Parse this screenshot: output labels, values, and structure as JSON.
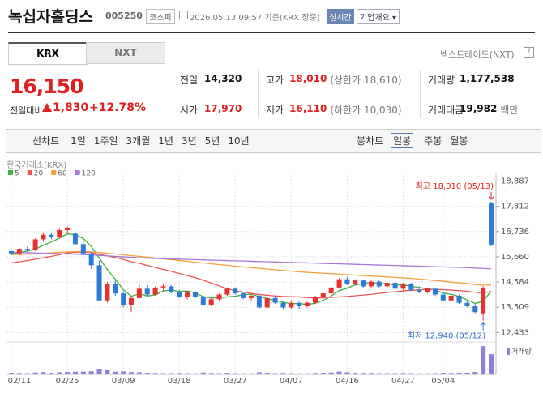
{
  "header": {
    "title": "녹십자홀딩스",
    "code": "005250",
    "market": "코스피",
    "timestamp": "2026.05.13 09:57 기준(KRX 장중)",
    "realtime_button": "실시간",
    "company_button": "기업개요 ▾"
  },
  "tabs": [
    "KRX",
    "NXT"
  ],
  "nxt_link": "넥스트레이드(NXT)",
  "help_icon": "?",
  "quote": {
    "price": "16,150",
    "change_label": "전일대비",
    "change": "1,830",
    "change_rate": "+12.78%"
  },
  "stats": [
    {
      "label": "전일",
      "value": "14,320",
      "value_color": "#111"
    },
    {
      "label": "고가",
      "value": "18,010",
      "note": "(상한가 18,610)",
      "value_color": "#e02020"
    },
    {
      "label": "거래량",
      "value": "1,177,538",
      "value_color": "#111"
    },
    {
      "label": "시가",
      "value": "17,970",
      "value_color": "#e02020"
    },
    {
      "label": "저가",
      "value": "16,110",
      "note": "(하한가 10,030)",
      "value_color": "#e02020"
    },
    {
      "label": "거래대금",
      "value": "19,982",
      "note": "백만",
      "value_color": "#111"
    }
  ],
  "toolbar": {
    "line_chart": "선차트",
    "line_periods": [
      "1일",
      "1주일",
      "3개월",
      "1년",
      "3년",
      "5년",
      "10년"
    ],
    "candle_chart": "봉차트",
    "candle_periods": [
      "일봉",
      "주봉",
      "월봉"
    ],
    "selected": "일봉"
  },
  "chart_data": {
    "type": "candlestick",
    "source": "한국거래소(KRX)",
    "categories": [
      "02/11",
      null,
      null,
      null,
      null,
      null,
      null,
      "02/25",
      null,
      null,
      null,
      null,
      null,
      null,
      "03/09",
      null,
      null,
      null,
      null,
      null,
      null,
      "03/18",
      null,
      null,
      null,
      null,
      null,
      null,
      "03/27",
      null,
      null,
      null,
      null,
      null,
      null,
      "04/07",
      null,
      null,
      null,
      null,
      null,
      null,
      "04/16",
      null,
      null,
      null,
      null,
      null,
      null,
      "04/27",
      null,
      null,
      null,
      null,
      "05/04",
      null,
      null,
      null,
      null,
      null,
      null
    ],
    "open": [
      15900,
      15800,
      16000,
      15950,
      16400,
      16600,
      16500,
      16800,
      16650,
      16200,
      15800,
      15300,
      13800,
      14500,
      14100,
      13600,
      13900,
      14300,
      14050,
      14350,
      14400,
      14150,
      13950,
      14150,
      13950,
      13600,
      13850,
      14050,
      14300,
      14100,
      13900,
      14000,
      13500,
      13900,
      13700,
      13500,
      13700,
      13550,
      13700,
      13950,
      14100,
      14350,
      14700,
      14500,
      14650,
      14400,
      14600,
      14400,
      14550,
      14300,
      14500,
      14250,
      14150,
      14300,
      14050,
      13800,
      14000,
      13700,
      13550,
      13250,
      17970
    ],
    "high": [
      16000,
      16050,
      16100,
      16450,
      16700,
      16700,
      16850,
      16950,
      16700,
      16300,
      15850,
      15500,
      14600,
      14700,
      14200,
      14000,
      14500,
      14450,
      14400,
      14500,
      14450,
      14250,
      14200,
      14200,
      14000,
      13900,
      14100,
      14350,
      14350,
      14150,
      14050,
      14050,
      13950,
      14000,
      13800,
      13800,
      13750,
      13750,
      14000,
      14150,
      14400,
      14750,
      14800,
      14700,
      14700,
      14650,
      14650,
      14600,
      14600,
      14550,
      14550,
      14400,
      14350,
      14350,
      14150,
      14050,
      14050,
      13800,
      13650,
      14400,
      18010
    ],
    "low": [
      15750,
      15750,
      15850,
      15900,
      16300,
      16400,
      16450,
      16650,
      16150,
      15750,
      15150,
      13800,
      13700,
      14000,
      13500,
      13300,
      13850,
      14000,
      14000,
      14200,
      14100,
      13900,
      13850,
      13900,
      13550,
      13550,
      13800,
      14000,
      14050,
      13850,
      13800,
      13450,
      13450,
      13650,
      13400,
      13450,
      13450,
      13500,
      13650,
      13900,
      14050,
      14300,
      14450,
      14450,
      14350,
      14350,
      14350,
      14350,
      14250,
      14250,
      14200,
      14100,
      14100,
      14000,
      13750,
      13750,
      13650,
      13500,
      13250,
      12940,
      16110
    ],
    "close": [
      15800,
      16000,
      15950,
      16400,
      16600,
      16500,
      16800,
      16900,
      16200,
      15800,
      15300,
      13800,
      14500,
      14100,
      13600,
      13900,
      14300,
      14050,
      14350,
      14400,
      14150,
      13950,
      14150,
      13950,
      13600,
      13850,
      14050,
      14300,
      14100,
      13900,
      14000,
      13500,
      13900,
      13700,
      13500,
      13700,
      13550,
      13700,
      13950,
      14100,
      14350,
      14700,
      14500,
      14650,
      14400,
      14600,
      14400,
      14550,
      14300,
      14500,
      14250,
      14150,
      14300,
      14050,
      13800,
      14000,
      13700,
      13550,
      13300,
      14320,
      16150
    ],
    "up_color": "#e6312f",
    "down_color": "#2d7bd6",
    "moving_averages": [
      {
        "name": "5",
        "color": "#3cb043",
        "values": [
          15750,
          15850,
          15900,
          16000,
          16150,
          16290,
          16450,
          16640,
          16600,
          16440,
          16100,
          15600,
          15120,
          14700,
          14260,
          13980,
          14080,
          13990,
          14040,
          14200,
          14250,
          14180,
          14200,
          14120,
          13960,
          13900,
          13920,
          13950,
          13980,
          14040,
          14070,
          13960,
          13880,
          13800,
          13720,
          13660,
          13670,
          13630,
          13680,
          13800,
          13990,
          14220,
          14320,
          14460,
          14520,
          14570,
          14510,
          14520,
          14450,
          14470,
          14400,
          14350,
          14300,
          14250,
          14110,
          14060,
          13970,
          13820,
          13670,
          13770,
          14200
        ]
      },
      {
        "name": "20",
        "color": "#e85555",
        "values": [
          15400,
          15450,
          15500,
          15560,
          15620,
          15680,
          15750,
          15820,
          15850,
          15860,
          15840,
          15760,
          15700,
          15630,
          15550,
          15450,
          15380,
          15290,
          15210,
          15120,
          15040,
          14950,
          14860,
          14770,
          14660,
          14540,
          14420,
          14300,
          14210,
          14150,
          14100,
          14050,
          14020,
          13990,
          13970,
          13960,
          13950,
          13920,
          13910,
          13910,
          13930,
          13950,
          13970,
          14000,
          14030,
          14060,
          14100,
          14140,
          14170,
          14200,
          14230,
          14250,
          14270,
          14270,
          14260,
          14240,
          14220,
          14190,
          14150,
          14120,
          14180
        ]
      },
      {
        "name": "60",
        "color": "#f5a03c",
        "values": [
          15750,
          15760,
          15770,
          15790,
          15810,
          15830,
          15850,
          15870,
          15880,
          15880,
          15870,
          15840,
          15810,
          15780,
          15750,
          15710,
          15680,
          15640,
          15610,
          15570,
          15540,
          15500,
          15470,
          15430,
          15400,
          15360,
          15330,
          15300,
          15260,
          15230,
          15200,
          15170,
          15140,
          15110,
          15080,
          15050,
          15020,
          15000,
          14980,
          14960,
          14940,
          14920,
          14900,
          14880,
          14860,
          14840,
          14820,
          14800,
          14780,
          14760,
          14740,
          14710,
          14680,
          14650,
          14620,
          14580,
          14550,
          14520,
          14480,
          14450,
          14460
        ]
      },
      {
        "name": "120",
        "color": "#a877d8",
        "values": [
          15850,
          15840,
          15830,
          15820,
          15810,
          15800,
          15790,
          15780,
          15770,
          15760,
          15740,
          15720,
          15700,
          15680,
          15660,
          15640,
          15620,
          15600,
          15590,
          15580,
          15570,
          15560,
          15550,
          15540,
          15530,
          15520,
          15510,
          15500,
          15490,
          15480,
          15470,
          15460,
          15450,
          15440,
          15430,
          15420,
          15410,
          15400,
          15390,
          15380,
          15370,
          15360,
          15350,
          15340,
          15330,
          15320,
          15310,
          15300,
          15290,
          15280,
          15270,
          15260,
          15250,
          15240,
          15230,
          15220,
          15210,
          15200,
          15180,
          15160,
          15150
        ]
      }
    ],
    "volume": {
      "label": "거래량",
      "color": "#8f7fd8",
      "ylim": [
        0,
        1800000
      ],
      "values": [
        90000,
        80000,
        70000,
        110000,
        130000,
        90000,
        120000,
        140000,
        150000,
        160000,
        180000,
        320000,
        240000,
        150000,
        170000,
        130000,
        120000,
        90000,
        80000,
        70000,
        70000,
        80000,
        70000,
        60000,
        110000,
        80000,
        70000,
        90000,
        70000,
        60000,
        60000,
        120000,
        90000,
        70000,
        80000,
        70000,
        60000,
        60000,
        80000,
        90000,
        110000,
        160000,
        120000,
        90000,
        80000,
        80000,
        70000,
        70000,
        70000,
        80000,
        70000,
        60000,
        60000,
        70000,
        90000,
        80000,
        90000,
        100000,
        140000,
        1650000,
        1177538
      ]
    },
    "ylim": [
      12100,
      19250
    ],
    "yticks": [
      {
        "value": 18887,
        "label": "18,887"
      },
      {
        "value": 17812,
        "label": "17,812"
      },
      {
        "value": 16736,
        "label": "16,736"
      },
      {
        "value": 15660,
        "label": "15,660"
      },
      {
        "value": 14584,
        "label": "14,584"
      },
      {
        "value": 13509,
        "label": "13,509"
      },
      {
        "value": 12433,
        "label": "12,433"
      }
    ],
    "grid": true,
    "max_label": "최고 18,010 (05/13)",
    "min_label": "최저 12,940 (05/12)"
  }
}
